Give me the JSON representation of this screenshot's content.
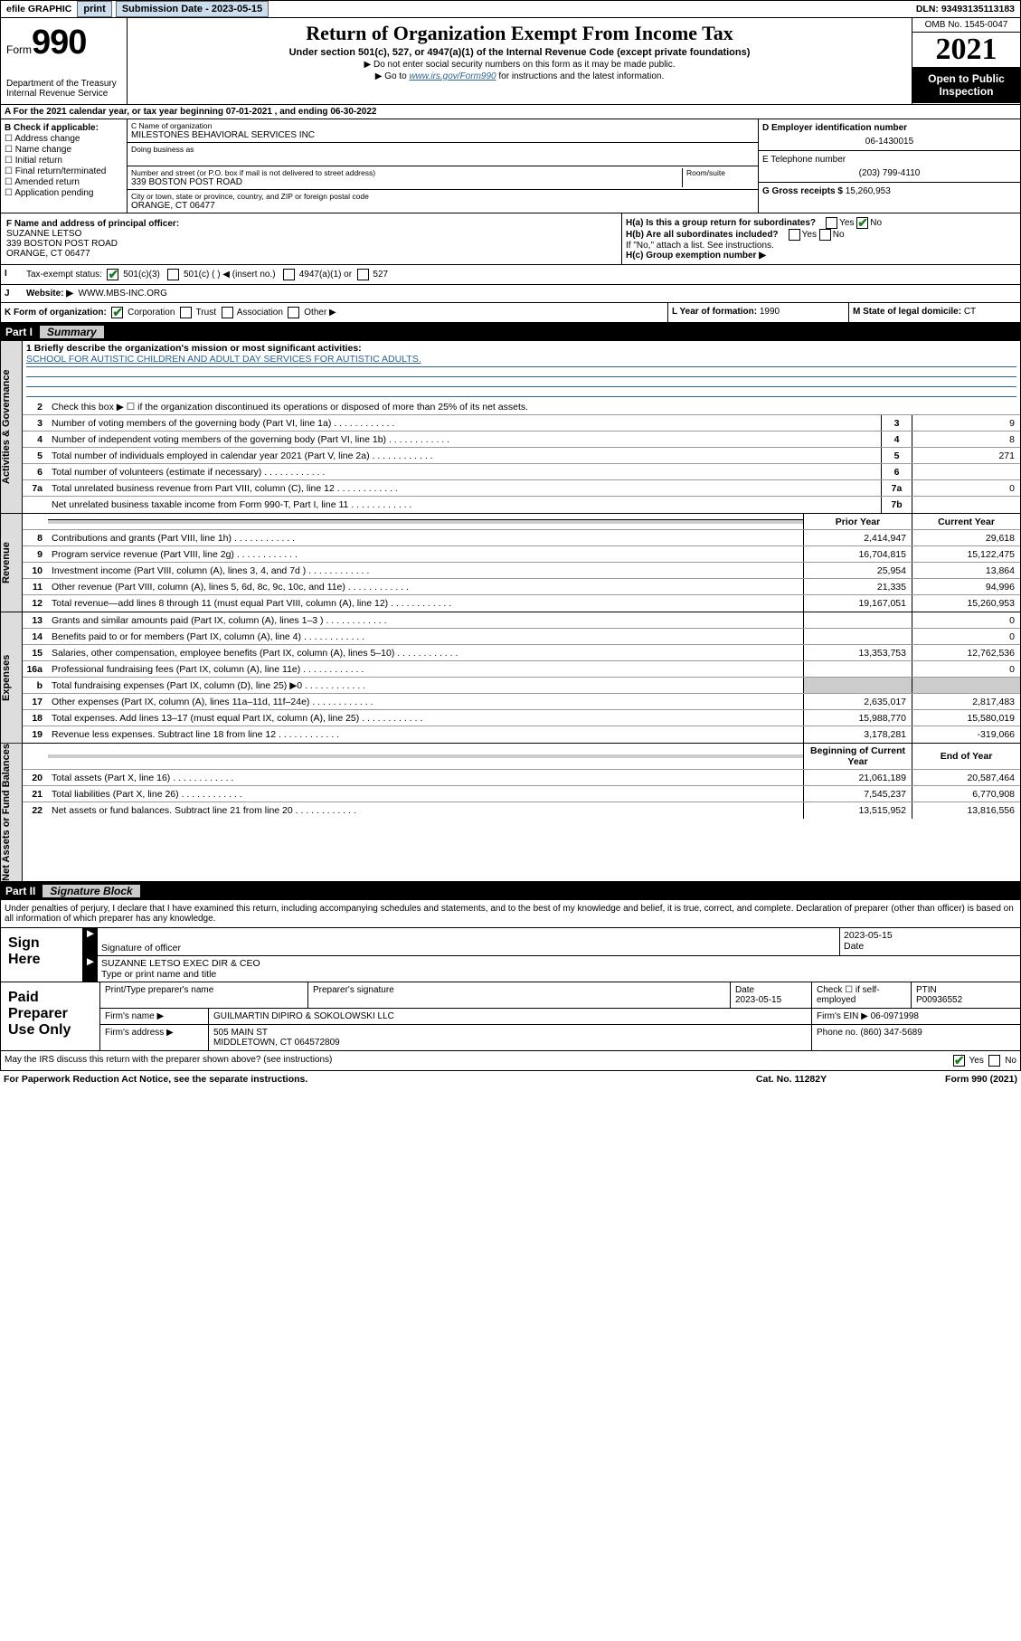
{
  "topbar": {
    "efile": "efile GRAPHIC",
    "print": "print",
    "sub_label": "Submission Date - 2023-05-15",
    "dln": "DLN: 93493135113183"
  },
  "header": {
    "form_label": "Form",
    "form_num": "990",
    "dept": "Department of the Treasury",
    "irs": "Internal Revenue Service",
    "title": "Return of Organization Exempt From Income Tax",
    "sub": "Under section 501(c), 527, or 4947(a)(1) of the Internal Revenue Code (except private foundations)",
    "note1": "▶ Do not enter social security numbers on this form as it may be made public.",
    "note2_pre": "▶ Go to ",
    "note2_link": "www.irs.gov/Form990",
    "note2_post": " for instructions and the latest information.",
    "omb": "OMB No. 1545-0047",
    "year": "2021",
    "open": "Open to Public Inspection"
  },
  "line_a": "A For the 2021 calendar year, or tax year beginning 07-01-2021    , and ending 06-30-2022",
  "col_b": {
    "label": "B Check if applicable:",
    "items": [
      "Address change",
      "Name change",
      "Initial return",
      "Final return/terminated",
      "Amended return",
      "Application pending"
    ]
  },
  "col_c": {
    "c_label": "C Name of organization",
    "c_name": "MILESTONES BEHAVIORAL SERVICES INC",
    "dba_label": "Doing business as",
    "addr_label": "Number and street (or P.O. box if mail is not delivered to street address)",
    "room": "Room/suite",
    "addr": "339 BOSTON POST ROAD",
    "city_label": "City or town, state or province, country, and ZIP or foreign postal code",
    "city": "ORANGE, CT  06477"
  },
  "col_d": {
    "d_label": "D Employer identification number",
    "d_val": "06-1430015",
    "e_label": "E Telephone number",
    "e_val": "(203) 799-4110",
    "g_label": "G Gross receipts $",
    "g_val": "15,260,953"
  },
  "fg": {
    "f_label": "F Name and address of principal officer:",
    "f_name": "SUZANNE LETSO",
    "f_addr1": "339 BOSTON POST ROAD",
    "f_addr2": "ORANGE, CT  06477",
    "ha": "H(a)  Is this a group return for subordinates?",
    "hb": "H(b)  Are all subordinates included?",
    "hb_note": "If \"No,\" attach a list. See instructions.",
    "hc": "H(c)  Group exemption number ▶",
    "yes": "Yes",
    "no": "No"
  },
  "line_i": {
    "label": "Tax-exempt status:",
    "c3": "501(c)(3)",
    "c": "501(c) (  ) ◀ (insert no.)",
    "a1": "4947(a)(1) or",
    "_527": "527"
  },
  "line_j": {
    "label": "Website: ▶",
    "val": "WWW.MBS-INC.ORG"
  },
  "line_k": {
    "label": "K Form of organization:",
    "corp": "Corporation",
    "trust": "Trust",
    "assoc": "Association",
    "other": "Other ▶",
    "l_label": "L Year of formation:",
    "l_val": "1990",
    "m_label": "M State of legal domicile:",
    "m_val": "CT"
  },
  "part1": {
    "num": "Part I",
    "title": "Summary"
  },
  "p1_q1a": "1  Briefly describe the organization's mission or most significant activities:",
  "p1_q1b": "SCHOOL FOR AUTISTIC CHILDREN AND ADULT DAY SERVICES FOR AUTISTIC ADULTS.",
  "p1_q2": "Check this box ▶ ☐  if the organization discontinued its operations or disposed of more than 25% of its net assets.",
  "gov_rows": [
    {
      "n": "3",
      "t": "Number of voting members of the governing body (Part VI, line 1a)",
      "box": "3",
      "v": "9"
    },
    {
      "n": "4",
      "t": "Number of independent voting members of the governing body (Part VI, line 1b)",
      "box": "4",
      "v": "8"
    },
    {
      "n": "5",
      "t": "Total number of individuals employed in calendar year 2021 (Part V, line 2a)",
      "box": "5",
      "v": "271"
    },
    {
      "n": "6",
      "t": "Total number of volunteers (estimate if necessary)",
      "box": "6",
      "v": ""
    },
    {
      "n": "7a",
      "t": "Total unrelated business revenue from Part VIII, column (C), line 12",
      "box": "7a",
      "v": "0"
    },
    {
      "n": "",
      "t": "Net unrelated business taxable income from Form 990-T, Part I, line 11",
      "box": "7b",
      "v": ""
    }
  ],
  "twocol_head": {
    "py": "Prior Year",
    "cy": "Current Year"
  },
  "rev_rows": [
    {
      "n": "8",
      "t": "Contributions and grants (Part VIII, line 1h)",
      "py": "2,414,947",
      "cy": "29,618"
    },
    {
      "n": "9",
      "t": "Program service revenue (Part VIII, line 2g)",
      "py": "16,704,815",
      "cy": "15,122,475"
    },
    {
      "n": "10",
      "t": "Investment income (Part VIII, column (A), lines 3, 4, and 7d )",
      "py": "25,954",
      "cy": "13,864"
    },
    {
      "n": "11",
      "t": "Other revenue (Part VIII, column (A), lines 5, 6d, 8c, 9c, 10c, and 11e)",
      "py": "21,335",
      "cy": "94,996"
    },
    {
      "n": "12",
      "t": "Total revenue—add lines 8 through 11 (must equal Part VIII, column (A), line 12)",
      "py": "19,167,051",
      "cy": "15,260,953"
    }
  ],
  "exp_rows": [
    {
      "n": "13",
      "t": "Grants and similar amounts paid (Part IX, column (A), lines 1–3 )",
      "py": "",
      "cy": "0"
    },
    {
      "n": "14",
      "t": "Benefits paid to or for members (Part IX, column (A), line 4)",
      "py": "",
      "cy": "0"
    },
    {
      "n": "15",
      "t": "Salaries, other compensation, employee benefits (Part IX, column (A), lines 5–10)",
      "py": "13,353,753",
      "cy": "12,762,536"
    },
    {
      "n": "16a",
      "t": "Professional fundraising fees (Part IX, column (A), line 11e)",
      "py": "",
      "cy": "0"
    },
    {
      "n": "b",
      "t": "Total fundraising expenses (Part IX, column (D), line 25) ▶0",
      "py": "shade",
      "cy": "shade"
    },
    {
      "n": "17",
      "t": "Other expenses (Part IX, column (A), lines 11a–11d, 11f–24e)",
      "py": "2,635,017",
      "cy": "2,817,483"
    },
    {
      "n": "18",
      "t": "Total expenses. Add lines 13–17 (must equal Part IX, column (A), line 25)",
      "py": "15,988,770",
      "cy": "15,580,019"
    },
    {
      "n": "19",
      "t": "Revenue less expenses. Subtract line 18 from line 12",
      "py": "3,178,281",
      "cy": "-319,066"
    }
  ],
  "na_head": {
    "py": "Beginning of Current Year",
    "cy": "End of Year"
  },
  "na_rows": [
    {
      "n": "20",
      "t": "Total assets (Part X, line 16)",
      "py": "21,061,189",
      "cy": "20,587,464"
    },
    {
      "n": "21",
      "t": "Total liabilities (Part X, line 26)",
      "py": "7,545,237",
      "cy": "6,770,908"
    },
    {
      "n": "22",
      "t": "Net assets or fund balances. Subtract line 21 from line 20",
      "py": "13,515,952",
      "cy": "13,816,556"
    }
  ],
  "part2": {
    "num": "Part II",
    "title": "Signature Block"
  },
  "sig_decl": "Under penalties of perjury, I declare that I have examined this return, including accompanying schedules and statements, and to the best of my knowledge and belief, it is true, correct, and complete. Declaration of preparer (other than officer) is based on all information of which preparer has any knowledge.",
  "sign": {
    "here": "Sign Here",
    "sig_label": "Signature of officer",
    "date_label": "Date",
    "date": "2023-05-15",
    "name": "SUZANNE LETSO  EXEC DIR & CEO",
    "name_label": "Type or print name and title"
  },
  "paid": {
    "label": "Paid Preparer Use Only",
    "h1": "Print/Type preparer's name",
    "h2": "Preparer's signature",
    "h3": "Date",
    "h3v": "2023-05-15",
    "h4": "Check ☐ if self-employed",
    "h5": "PTIN",
    "h5v": "P00936552",
    "firm_name_l": "Firm's name    ▶",
    "firm_name": "GUILMARTIN DIPIRO & SOKOLOWSKI LLC",
    "firm_ein_l": "Firm's EIN ▶",
    "firm_ein": "06-0971998",
    "firm_addr_l": "Firm's address ▶",
    "firm_addr1": "505 MAIN ST",
    "firm_addr2": "MIDDLETOWN, CT  064572809",
    "phone_l": "Phone no.",
    "phone": "(860) 347-5689"
  },
  "foot": {
    "q": "May the IRS discuss this return with the preparer shown above? (see instructions)",
    "yes": "Yes",
    "no": "No",
    "pra": "For Paperwork Reduction Act Notice, see the separate instructions.",
    "cat": "Cat. No. 11282Y",
    "form": "Form 990 (2021)"
  },
  "vtabs": {
    "gov": "Activities & Governance",
    "rev": "Revenue",
    "exp": "Expenses",
    "na": "Net Assets or Fund Balances"
  }
}
